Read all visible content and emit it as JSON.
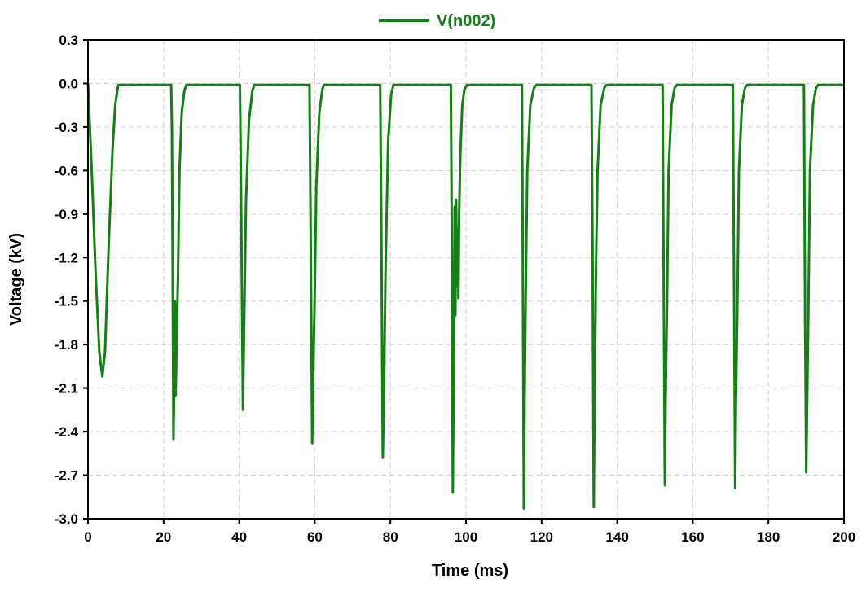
{
  "chart_data": {
    "type": "line",
    "title": "",
    "xlabel": "Time (ms)",
    "ylabel": "Voltage (kV)",
    "xlim": [
      0,
      200
    ],
    "ylim": [
      -3.0,
      0.3
    ],
    "xticks": [
      0,
      20,
      40,
      60,
      80,
      100,
      120,
      140,
      160,
      180,
      200
    ],
    "yticks": [
      0.3,
      0.0,
      -0.3,
      -0.6,
      -0.9,
      -1.2,
      -1.5,
      -1.8,
      -2.1,
      -2.4,
      -2.7,
      -3.0
    ],
    "xtick_labels": [
      "0",
      "20",
      "40",
      "60",
      "80",
      "100",
      "120",
      "140",
      "160",
      "180",
      "200"
    ],
    "ytick_labels": [
      "0.3",
      "0.0",
      "-0.3",
      "-0.6",
      "-0.9",
      "-1.2",
      "-1.5",
      "-1.8",
      "-2.1",
      "-2.4",
      "-2.7",
      "-3.0"
    ],
    "grid": true,
    "legend_position": "top-center",
    "series": [
      {
        "name": "V(n002)",
        "color": "#138013",
        "x": [
          0,
          0.5,
          1,
          2,
          3,
          3.8,
          4.5,
          5.5,
          6.5,
          7.2,
          8,
          22,
          22.2,
          22.4,
          22.6,
          22.8,
          23.0,
          23.2,
          23.5,
          23.8,
          24.2,
          24.8,
          25.5,
          26.0,
          40.2,
          40.4,
          40.8,
          41.0,
          41.3,
          41.8,
          42.6,
          43.5,
          44.0,
          58.6,
          58.9,
          59.3,
          59.6,
          59.9,
          60.4,
          61.2,
          62.0,
          62.4,
          77.3,
          77.6,
          78.0,
          78.3,
          78.7,
          79.4,
          80.2,
          80.8,
          96.0,
          96.2,
          96.5,
          96.7,
          97.0,
          97.2,
          97.4,
          97.6,
          97.8,
          98.0,
          98.2,
          98.5,
          99.0,
          99.6,
          100.3,
          100.8,
          114.8,
          115.0,
          115.3,
          115.5,
          115.8,
          116.2,
          117.0,
          118.0,
          118.6,
          133.2,
          133.5,
          133.8,
          134.0,
          134.4,
          134.8,
          135.6,
          136.6,
          137.2,
          152.0,
          152.3,
          152.6,
          152.8,
          153.2,
          153.6,
          154.4,
          155.2,
          155.8,
          170.6,
          170.9,
          171.2,
          171.4,
          171.8,
          172.2,
          173.0,
          173.8,
          174.4,
          189.4,
          189.7,
          190.0,
          190.3,
          190.6,
          191.0,
          191.8,
          192.6,
          193.2,
          200
        ],
        "y": [
          0,
          -0.3,
          -0.6,
          -1.3,
          -1.85,
          -2.02,
          -1.85,
          -1.1,
          -0.45,
          -0.15,
          -0.01,
          -0.01,
          -0.3,
          -1.2,
          -2.45,
          -2.1,
          -1.5,
          -2.15,
          -1.72,
          -1.35,
          -0.6,
          -0.2,
          -0.05,
          -0.01,
          -0.01,
          -0.5,
          -1.65,
          -2.25,
          -1.7,
          -0.8,
          -0.25,
          -0.05,
          -0.01,
          -0.01,
          -1.0,
          -2.48,
          -2.0,
          -1.6,
          -0.7,
          -0.2,
          -0.04,
          -0.01,
          -0.01,
          -1.0,
          -2.58,
          -2.15,
          -1.3,
          -0.4,
          -0.08,
          -0.01,
          -0.01,
          -0.9,
          -2.82,
          -2.2,
          -0.85,
          -1.6,
          -0.8,
          -1.4,
          -1.0,
          -1.48,
          -0.9,
          -0.5,
          -0.15,
          -0.04,
          -0.01,
          -0.01,
          -0.01,
          -1.1,
          -2.93,
          -2.2,
          -1.45,
          -0.6,
          -0.15,
          -0.03,
          -0.01,
          -0.01,
          -1.2,
          -2.92,
          -2.2,
          -1.25,
          -0.6,
          -0.15,
          -0.03,
          -0.01,
          -0.01,
          -1.4,
          -2.77,
          -2.2,
          -1.5,
          -0.6,
          -0.15,
          -0.03,
          -0.01,
          -0.01,
          -1.4,
          -2.79,
          -2.2,
          -1.5,
          -0.6,
          -0.15,
          -0.03,
          -0.01,
          -0.01,
          -1.6,
          -2.68,
          -2.1,
          -1.5,
          -0.6,
          -0.15,
          -0.03,
          -0.01,
          -0.01
        ]
      }
    ]
  }
}
